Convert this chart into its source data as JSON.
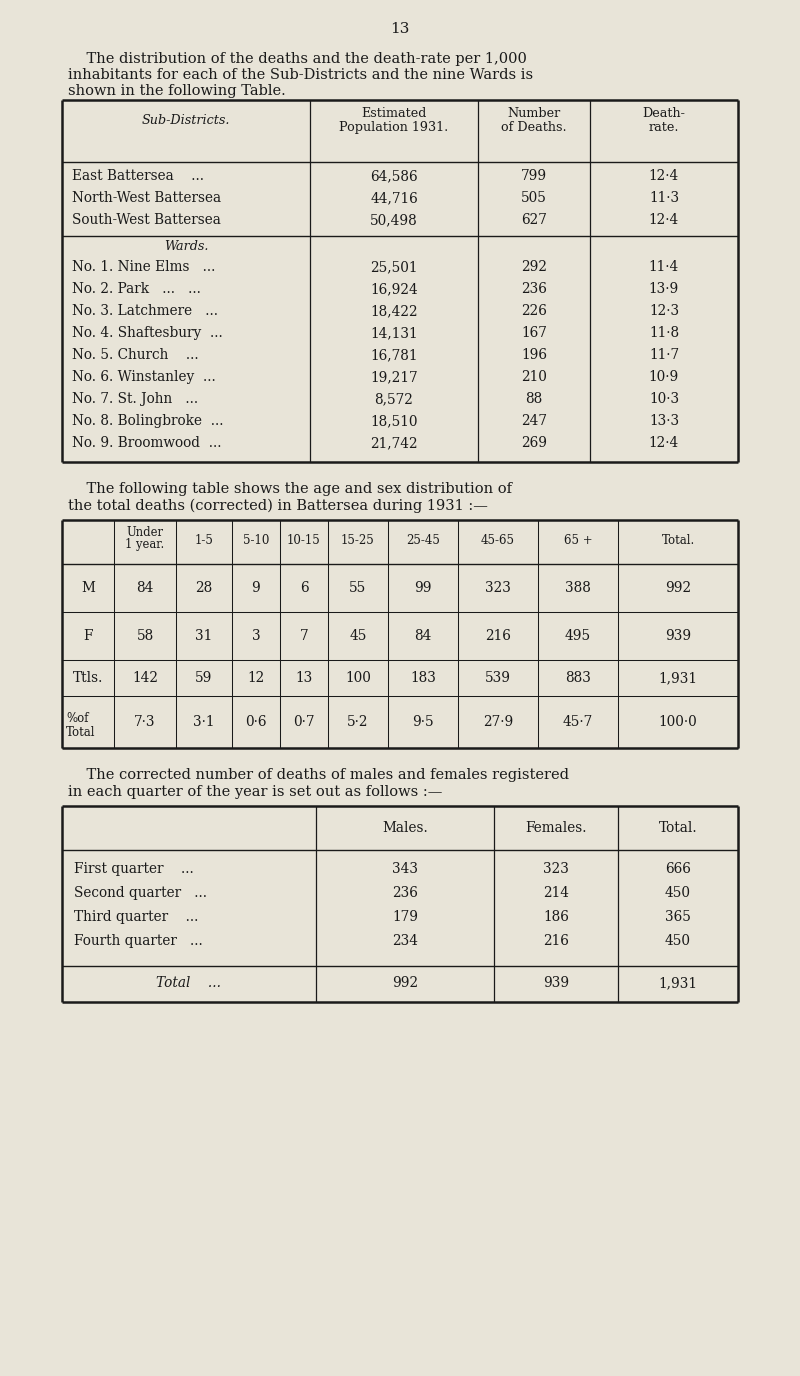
{
  "page_number": "13",
  "bg_color": "#e8e4d8",
  "text_color": "#1a1a1a",
  "intro1_line1": "    The distribution of the deaths and the death-rate per 1,000",
  "intro1_line2": "inhabitants for each of the Sub-Districts and the nine Wards is",
  "intro1_line3": "shown in the following Table.",
  "t1_subdistricts": [
    [
      "East Battersea    ...",
      "64,586",
      "799",
      "12·4"
    ],
    [
      "North-West Battersea",
      "44,716",
      "505",
      "11·3"
    ],
    [
      "South-West Battersea",
      "50,498",
      "627",
      "12·4"
    ]
  ],
  "t1_wards": [
    [
      "No. 1. Nine Elms   ...",
      "25,501",
      "292",
      "11·4"
    ],
    [
      "No. 2. Park   ...   ...",
      "16,924",
      "236",
      "13·9"
    ],
    [
      "No. 3. Latchmere   ...",
      "18,422",
      "226",
      "12·3"
    ],
    [
      "No. 4. Shaftesbury  ...",
      "14,131",
      "167",
      "11·8"
    ],
    [
      "No. 5. Church    ...",
      "16,781",
      "196",
      "11·7"
    ],
    [
      "No. 6. Winstanley  ...",
      "19,217",
      "210",
      "10·9"
    ],
    [
      "No. 7. St. John   ...",
      "8,572",
      "88",
      "10·3"
    ],
    [
      "No. 8. Bolingbroke  ...",
      "18,510",
      "247",
      "13·3"
    ],
    [
      "No. 9. Broomwood  ...",
      "21,742",
      "269",
      "12·4"
    ]
  ],
  "intro2_line1": "    The following table shows the age and sex distribution of",
  "intro2_line2": "the total deaths (corrected) in Battersea during 1931 :—",
  "t2_rows": [
    [
      "M",
      "84",
      "28",
      "9",
      "6",
      "55",
      "99",
      "323",
      "388",
      "992"
    ],
    [
      "F",
      "58",
      "31",
      "3",
      "7",
      "45",
      "84",
      "216",
      "495",
      "939"
    ],
    [
      "Ttls.",
      "142",
      "59",
      "12",
      "13",
      "100",
      "183",
      "539",
      "883",
      "1,931"
    ],
    [
      "%of\nTotal",
      "7·3",
      "3·1",
      "0·6",
      "0·7",
      "5·2",
      "9·5",
      "27·9",
      "45·7",
      "100·0"
    ]
  ],
  "intro3_line1": "    The corrected number of deaths of males and females registered",
  "intro3_line2": "in each quarter of the year is set out as follows :—",
  "t3_rows": [
    [
      "First quarter    ...",
      "343",
      "323",
      "666"
    ],
    [
      "Second quarter   ...",
      "236",
      "214",
      "450"
    ],
    [
      "Third quarter    ...",
      "179",
      "186",
      "365"
    ],
    [
      "Fourth quarter   ...",
      "234",
      "216",
      "450"
    ]
  ],
  "t3_total": [
    "Total    ...",
    "992",
    "939",
    "1,931"
  ]
}
